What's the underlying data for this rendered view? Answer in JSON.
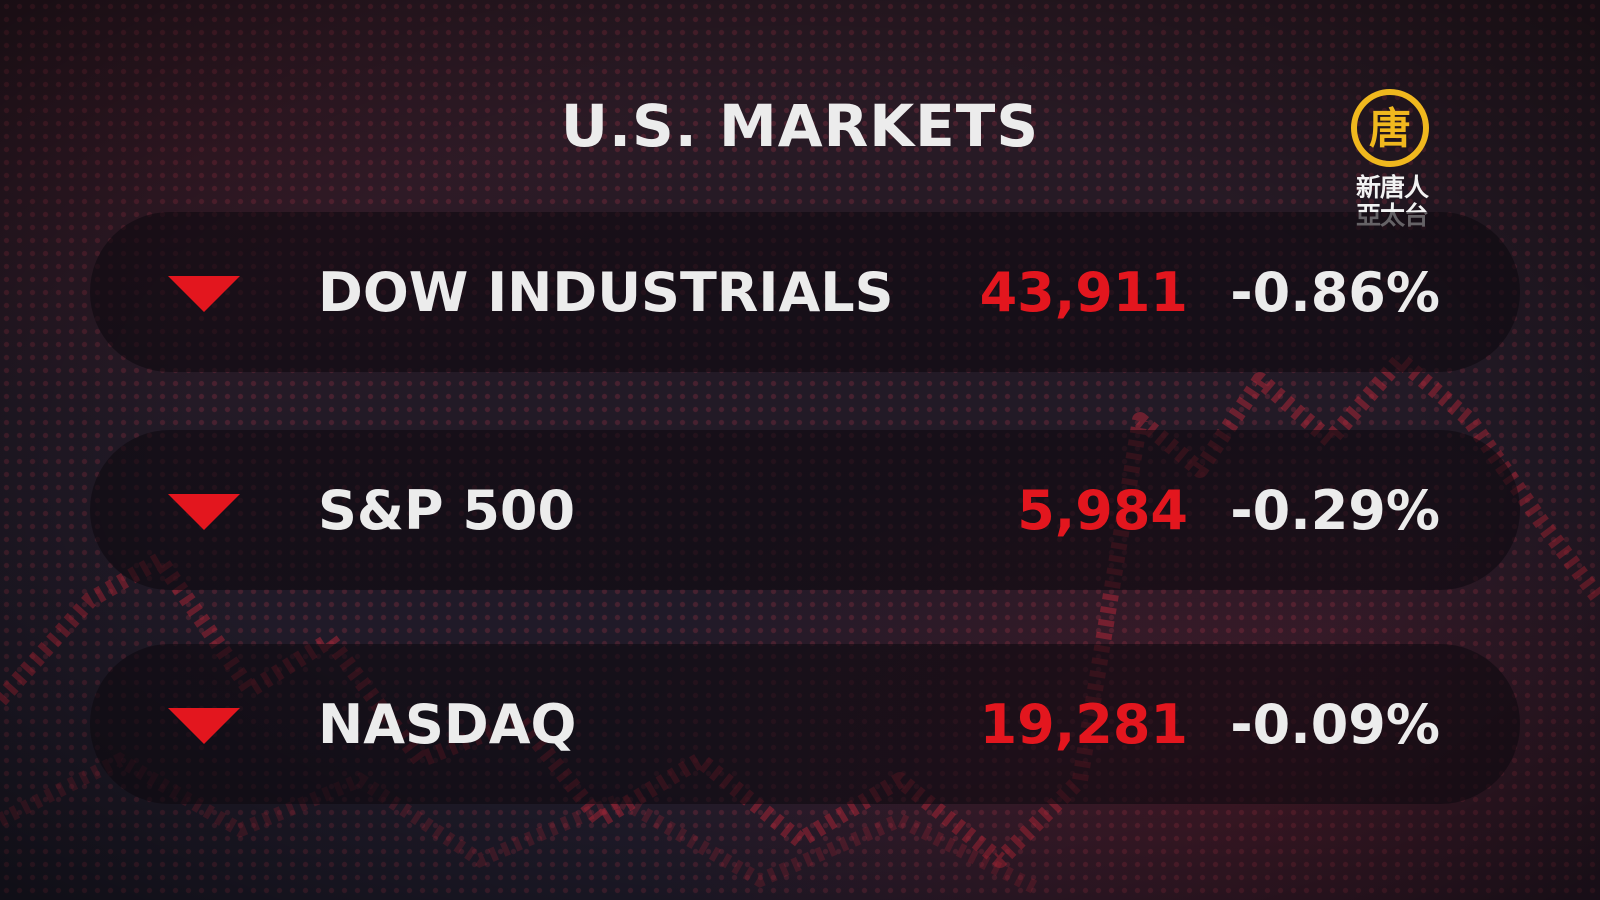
{
  "title": "U.S. MARKETS",
  "logo": {
    "seal_char": "唐",
    "line1": "新唐人",
    "line2": "亞太台"
  },
  "markets": [
    {
      "name": "DOW INDUSTRIALS",
      "value": "43,911",
      "change": "-0.86%",
      "direction": "down"
    },
    {
      "name": "S&P 500",
      "value": "5,984",
      "change": "-0.29%",
      "direction": "down"
    },
    {
      "name": "NASDAQ",
      "value": "19,281",
      "change": "-0.09%",
      "direction": "down"
    }
  ],
  "colors": {
    "negative": "#e3161e",
    "text": "#ececec",
    "logo_gold": "#f0b81e"
  }
}
